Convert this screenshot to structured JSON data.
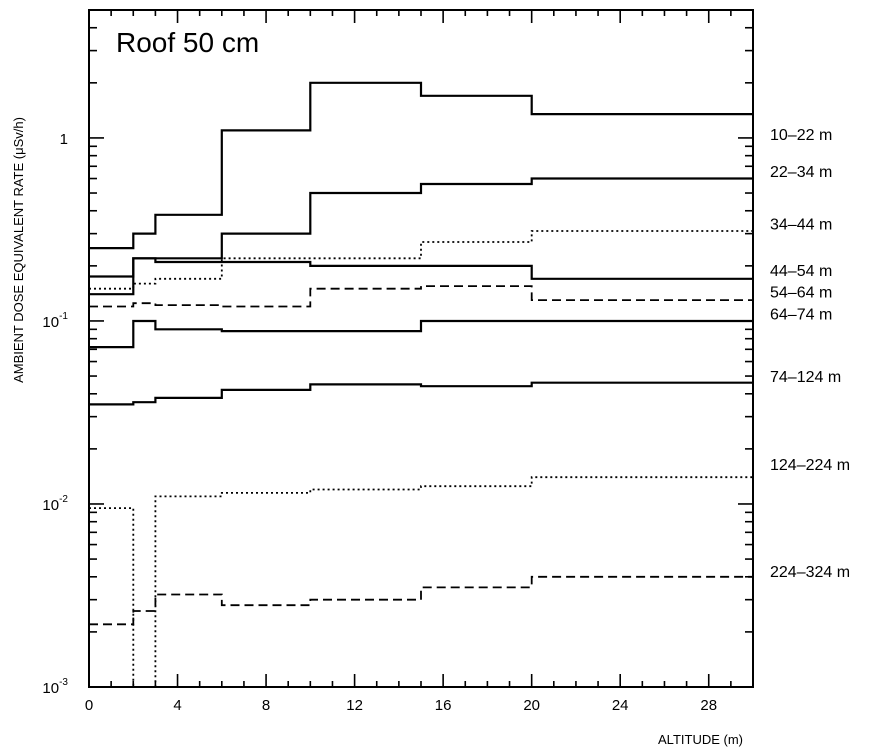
{
  "chart_data": {
    "type": "line",
    "title": "Roof 50 cm",
    "xlabel": "ALTITUDE (m)",
    "ylabel": "AMBIENT DOSE EQUIVALENT RATE (μSv/h)",
    "xscale": "linear",
    "yscale": "log",
    "xlim": [
      0,
      30
    ],
    "ylim": [
      0.001,
      5
    ],
    "grid": false,
    "legend": "none",
    "x_ticks": [
      {
        "value": 0,
        "label": "0"
      },
      {
        "value": 4,
        "label": "4"
      },
      {
        "value": 8,
        "label": "8"
      },
      {
        "value": 12,
        "label": "12"
      },
      {
        "value": 16,
        "label": "16"
      },
      {
        "value": 20,
        "label": "20"
      },
      {
        "value": 24,
        "label": "24"
      },
      {
        "value": 28,
        "label": "28"
      }
    ],
    "y_ticks": [
      {
        "value": 1,
        "label": "1",
        "exp": ""
      },
      {
        "value": 0.1,
        "label": "10",
        "exp": "-1"
      },
      {
        "value": 0.01,
        "label": "10",
        "exp": "-2"
      },
      {
        "value": 0.001,
        "label": "10",
        "exp": "-3"
      }
    ],
    "series": [
      {
        "name": "10–22 m",
        "style": "solid",
        "color": "#000000",
        "edges": [
          0,
          2,
          3,
          6,
          10,
          15,
          20,
          30
        ],
        "values": [
          0.25,
          0.3,
          0.38,
          1.1,
          2.0,
          1.7,
          1.35
        ]
      },
      {
        "name": "22–34 m",
        "style": "solid",
        "color": "#000000",
        "edges": [
          0,
          2,
          3,
          6,
          10,
          15,
          20,
          30
        ],
        "values": [
          0.175,
          0.22,
          0.22,
          0.3,
          0.5,
          0.56,
          0.6
        ]
      },
      {
        "name": "34–44 m",
        "style": "dotted",
        "color": "#000000",
        "edges": [
          0,
          2,
          3,
          6,
          10,
          15,
          20,
          30
        ],
        "values": [
          0.15,
          0.16,
          0.17,
          0.22,
          0.22,
          0.27,
          0.31
        ]
      },
      {
        "name": "44–54 m",
        "style": "solid",
        "color": "#000000",
        "edges": [
          0,
          2,
          3,
          6,
          10,
          15,
          20,
          30
        ],
        "values": [
          0.14,
          0.22,
          0.21,
          0.21,
          0.2,
          0.2,
          0.17
        ]
      },
      {
        "name": "54–64 m",
        "style": "dashed",
        "color": "#000000",
        "edges": [
          0,
          2,
          3,
          6,
          10,
          15,
          20,
          30
        ],
        "values": [
          0.12,
          0.125,
          0.122,
          0.12,
          0.15,
          0.155,
          0.13
        ]
      },
      {
        "name": "64–74 m",
        "style": "solid",
        "color": "#000000",
        "edges": [
          0,
          2,
          3,
          6,
          10,
          15,
          20,
          30
        ],
        "values": [
          0.072,
          0.1,
          0.09,
          0.088,
          0.088,
          0.1,
          0.1
        ]
      },
      {
        "name": "74–124 m",
        "style": "solid",
        "color": "#000000",
        "edges": [
          0,
          2,
          3,
          6,
          10,
          15,
          20,
          30
        ],
        "values": [
          0.035,
          0.036,
          0.038,
          0.042,
          0.045,
          0.044,
          0.046
        ]
      },
      {
        "name": "124–224 m",
        "style": "dotted",
        "color": "#000000",
        "edges": [
          0,
          2,
          3,
          6,
          10,
          15,
          20,
          30
        ],
        "values": [
          0.0095,
          0.001,
          0.011,
          0.0115,
          0.012,
          0.0125,
          0.014
        ]
      },
      {
        "name": "224–324 m",
        "style": "dashed",
        "color": "#000000",
        "edges": [
          0,
          2,
          3,
          6,
          10,
          15,
          20,
          30
        ],
        "values": [
          0.0022,
          0.0026,
          0.0032,
          0.0028,
          0.003,
          0.0035,
          0.004
        ]
      }
    ],
    "series_labels": [
      {
        "text": "10–22 m",
        "y": 1.05
      },
      {
        "text": "22–34 m",
        "y": 0.66
      },
      {
        "text": "34–44 m",
        "y": 0.34
      },
      {
        "text": "44–54 m",
        "y": 0.19
      },
      {
        "text": "54–64 m",
        "y": 0.145
      },
      {
        "text": "64–74 m",
        "y": 0.11
      },
      {
        "text": "74–124 m",
        "y": 0.05
      },
      {
        "text": "124–224 m",
        "y": 0.0165
      },
      {
        "text": "224–324 m",
        "y": 0.0043
      }
    ]
  }
}
